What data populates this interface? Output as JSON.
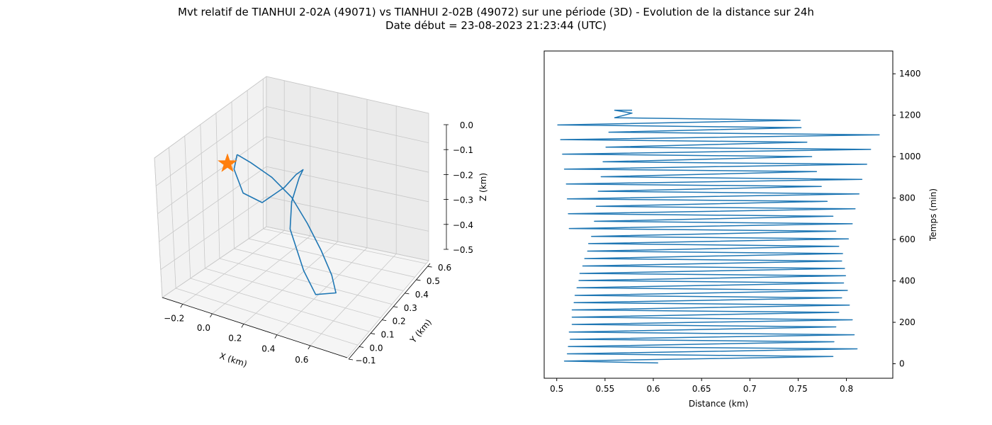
{
  "figure": {
    "title_line1": "Mvt relatif de TIANHUI 2-02A (49071) vs TIANHUI 2-02B (49072) sur une période (3D) - Evolution de la distance sur 24h",
    "title_line2": "Date début = 23-08-2023 21:23:44 (UTC)"
  },
  "colors": {
    "series": "#1f77b4",
    "marker": "#ff7f0e"
  },
  "chart_data": [
    {
      "type": "line3d",
      "xlabel": "X (km)",
      "ylabel": "Y (km)",
      "zlabel": "Z (km)",
      "x_ticks": [
        "−0.2",
        "0.0",
        "0.2",
        "0.4",
        "0.6"
      ],
      "y_ticks": [
        "−0.1",
        "0.0",
        "0.1",
        "0.2",
        "0.3",
        "0.4",
        "0.5",
        "0.6"
      ],
      "z_ticks": [
        "0.0",
        "−0.1",
        "−0.2",
        "−0.3",
        "−0.4",
        "−0.5"
      ],
      "xlim": [
        -0.3,
        0.7
      ],
      "ylim": [
        -0.1,
        0.65
      ],
      "zlim": [
        -0.52,
        0.0
      ],
      "grid": true,
      "marker": {
        "shape": "star",
        "x": -0.28,
        "y": 0.6,
        "z": -0.1
      },
      "series": [
        {
          "name": "",
          "points": [
            [
              -0.05,
              0.35,
              -0.08
            ],
            [
              0.05,
              0.38,
              -0.08
            ],
            [
              0.18,
              0.4,
              -0.1
            ],
            [
              0.3,
              0.42,
              -0.14
            ],
            [
              0.4,
              0.45,
              -0.2
            ],
            [
              0.48,
              0.47,
              -0.27
            ],
            [
              0.55,
              0.5,
              -0.33
            ],
            [
              0.6,
              0.55,
              -0.36
            ],
            [
              0.52,
              0.6,
              -0.36
            ],
            [
              0.45,
              0.58,
              -0.3
            ],
            [
              0.35,
              0.52,
              -0.2
            ],
            [
              0.32,
              0.45,
              -0.14
            ],
            [
              0.3,
              0.35,
              -0.1
            ],
            [
              0.25,
              0.25,
              -0.12
            ],
            [
              0.15,
              0.18,
              -0.18
            ],
            [
              0.05,
              0.15,
              -0.25
            ],
            [
              -0.05,
              0.2,
              -0.3
            ],
            [
              -0.1,
              0.27,
              -0.25
            ],
            [
              -0.1,
              0.32,
              -0.15
            ],
            [
              -0.05,
              0.35,
              -0.08
            ]
          ]
        }
      ]
    },
    {
      "type": "line",
      "xlabel": "Distance (km)",
      "ylabel": "Temps (min)",
      "y_axis_position": "right",
      "xlim": [
        0.487,
        0.848
      ],
      "ylim": [
        -70,
        1510
      ],
      "x_ticks": [
        0.5,
        0.55,
        0.6,
        0.65,
        0.7,
        0.75,
        0.8
      ],
      "y_ticks": [
        0,
        200,
        400,
        600,
        800,
        1000,
        1200,
        1400
      ],
      "grid": false,
      "series": [
        {
          "name": "",
          "x": [
            0.605,
            0.508,
            0.786,
            0.511,
            0.811,
            0.512,
            0.787,
            0.514,
            0.808,
            0.513,
            0.789,
            0.516,
            0.806,
            0.516,
            0.792,
            0.516,
            0.803,
            0.518,
            0.795,
            0.519,
            0.801,
            0.521,
            0.797,
            0.523,
            0.799,
            0.524,
            0.798,
            0.527,
            0.795,
            0.529,
            0.796,
            0.532,
            0.792,
            0.533,
            0.802,
            0.536,
            0.789,
            0.513,
            0.806,
            0.539,
            0.786,
            0.512,
            0.809,
            0.541,
            0.78,
            0.511,
            0.813,
            0.543,
            0.774,
            0.51,
            0.816,
            0.546,
            0.769,
            0.508,
            0.821,
            0.548,
            0.764,
            0.506,
            0.825,
            0.551,
            0.759,
            0.504,
            0.834,
            0.554,
            0.753,
            0.501,
            0.752,
            0.56,
            0.578,
            0.56,
            0.578
          ],
          "y": [
            4,
            13,
            35,
            48,
            72,
            83,
            106,
            118,
            140,
            153,
            178,
            190,
            212,
            225,
            248,
            260,
            283,
            295,
            318,
            330,
            354,
            367,
            390,
            402,
            425,
            436,
            460,
            472,
            496,
            508,
            532,
            544,
            567,
            580,
            603,
            615,
            640,
            653,
            676,
            688,
            712,
            724,
            748,
            760,
            784,
            796,
            820,
            833,
            856,
            868,
            890,
            903,
            928,
            940,
            963,
            975,
            1000,
            1012,
            1035,
            1046,
            1070,
            1082,
            1105,
            1118,
            1140,
            1153,
            1176,
            1188,
            1210,
            1224,
            1224
          ]
        }
      ]
    }
  ]
}
